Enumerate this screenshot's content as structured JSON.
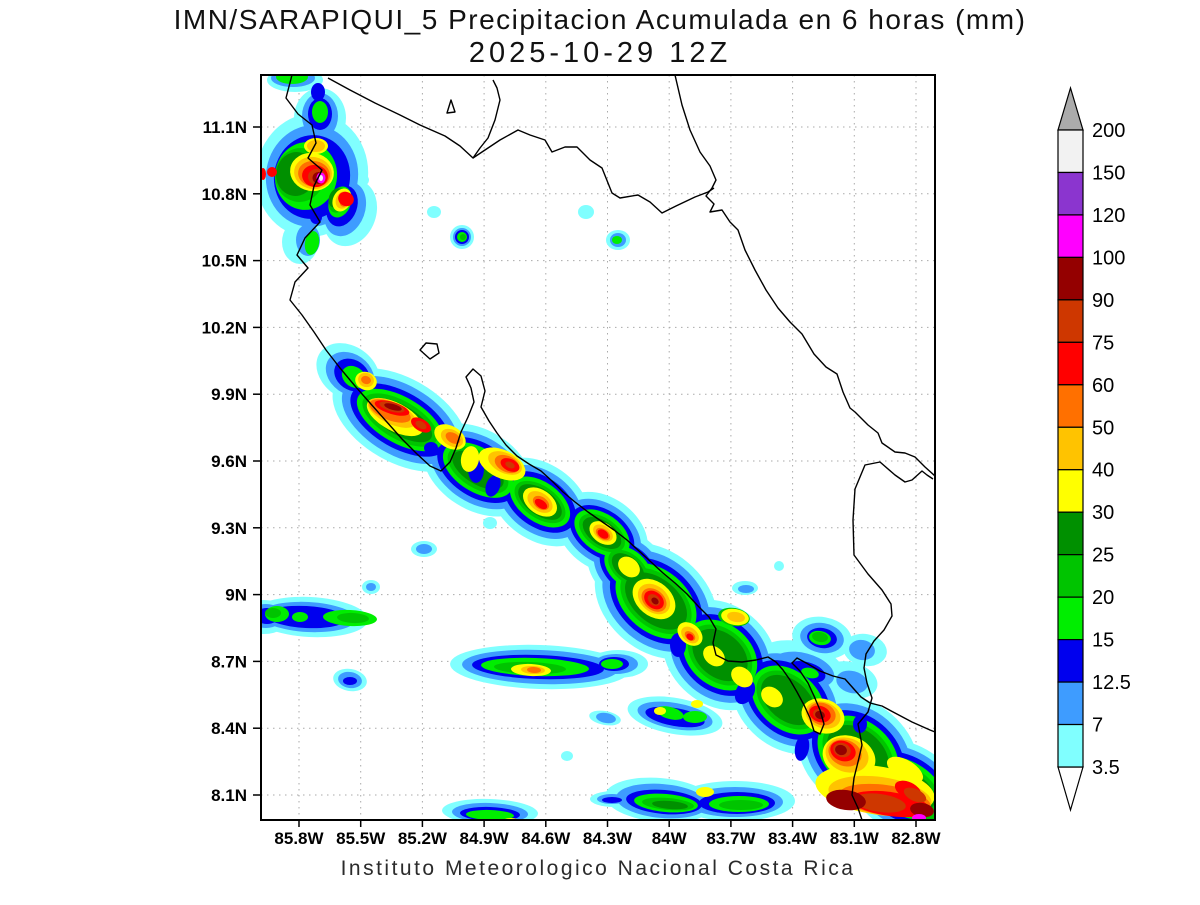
{
  "title": {
    "line1": "IMN/SARAPIQUI_5 Precipitacion Acumulada en 6 horas (mm)",
    "line2": "2025-10-29 12Z"
  },
  "footer": "Instituto Meteorologico Nacional Costa Rica",
  "axes": {
    "x": {
      "type": "longitude",
      "labels": [
        "85.8W",
        "85.5W",
        "85.2W",
        "84.9W",
        "84.6W",
        "84.3W",
        "84W",
        "83.7W",
        "83.4W",
        "83.1W",
        "82.8W"
      ]
    },
    "y": {
      "type": "latitude",
      "labels": [
        "11.1N",
        "10.8N",
        "10.5N",
        "10.2N",
        "9.9N",
        "9.6N",
        "9.3N",
        "9N",
        "8.7N",
        "8.4N",
        "8.1N"
      ]
    }
  },
  "colorbar": {
    "labels": [
      "200",
      "150",
      "120",
      "100",
      "90",
      "75",
      "60",
      "50",
      "40",
      "30",
      "25",
      "20",
      "15",
      "12.5",
      "7",
      "3.5"
    ],
    "segment_levels_top_to_bottom": [
      "150",
      "120",
      "100",
      "90",
      "75",
      "60",
      "50",
      "40",
      "30",
      "25",
      "20",
      "15",
      "12.5",
      "7",
      "3.5"
    ],
    "over_arrow_color": "#ABABAB",
    "under_arrow_color": "#FFFFFF"
  },
  "palette": {
    "3.5": "#80FFFF",
    "7": "#3E9CFF",
    "12.5": "#0000EE",
    "15": "#00EE00",
    "20": "#00C400",
    "25": "#009000",
    "30": "#FFFF00",
    "40": "#FFC300",
    "50": "#FF7000",
    "60": "#FF0000",
    "75": "#CE3700",
    "90": "#940000",
    "100": "#FF00FF",
    "120": "#8B35CF",
    "150": "#F2F2F2",
    "coastline": "#000000",
    "grid": "#AAAAAA",
    "frame": "#000000"
  },
  "chart_data": {
    "type": "heatmap",
    "title": "IMN/SARAPIQUI_5 Precipitacion Acumulada en 6 horas (mm)",
    "valid_time": "2025-10-29 12Z",
    "variable": "Precipitacion Acumulada en 6 horas",
    "units": "mm",
    "region": "Costa Rica",
    "source_caption": "Instituto Meteorologico Nacional Costa Rica",
    "x_axis": {
      "label": "longitude",
      "ticks": [
        "85.8W",
        "85.5W",
        "85.2W",
        "84.9W",
        "84.6W",
        "84.3W",
        "84W",
        "83.7W",
        "83.4W",
        "83.1W",
        "82.8W"
      ],
      "approx_range": [
        "86.0W",
        "82.7W"
      ]
    },
    "y_axis": {
      "label": "latitude",
      "ticks": [
        "11.1N",
        "10.8N",
        "10.5N",
        "10.2N",
        "9.9N",
        "9.6N",
        "9.3N",
        "9N",
        "8.7N",
        "8.4N",
        "8.1N"
      ],
      "approx_range": [
        "8.0N",
        "11.3N"
      ]
    },
    "contour_levels_mm": [
      3.5,
      7,
      12.5,
      15,
      20,
      25,
      30,
      40,
      50,
      60,
      75,
      90,
      100,
      120,
      150,
      200
    ],
    "legend_position": "right",
    "grid": "dotted",
    "max_cells": [
      {
        "lon": "85.69W",
        "lat": "10.87N",
        "max_band_mm": "150-200",
        "note": "intense isolated storm over NW Guanacaste, magenta ring with near-white core"
      },
      {
        "lon": "85.35W",
        "lat": "9.84N",
        "max_band_mm": "90-100"
      },
      {
        "lon": "85.21W",
        "lat": "9.76N",
        "max_band_mm": "75-90"
      },
      {
        "lon": "84.77W",
        "lat": "9.58N",
        "max_band_mm": "75-90"
      },
      {
        "lon": "84.62W",
        "lat": "9.41N",
        "max_band_mm": "60-75"
      },
      {
        "lon": "84.32W",
        "lat": "9.27N",
        "max_band_mm": "60-75"
      },
      {
        "lon": "84.07W",
        "lat": "8.98N",
        "max_band_mm": "90-100"
      },
      {
        "lon": "83.27W",
        "lat": "8.46N",
        "max_band_mm": "90-100"
      },
      {
        "lon": "83.15W",
        "lat": "8.30N",
        "max_band_mm": "90-100"
      },
      {
        "lon": "83.14W",
        "lat": "8.08N",
        "max_band_mm": "90-100"
      },
      {
        "lon": "82.79W",
        "lat": "7.99N",
        "max_band_mm": "100-120",
        "note": "magenta spot clipped at bottom-right corner"
      },
      {
        "lon": "84.66W",
        "lat": "8.66N",
        "max_band_mm": "50-60"
      }
    ],
    "bands": [
      "Broad NW-SE band of heavy rain (30-100 mm) along the Pacific slope from ~85.5W,10.0N to ~82.8W,8.0N",
      "Weak E-W band ~8.9N between 85.8W and 85.3W (max 20-25 mm)",
      "E-W band ~8.68N between 84.9W and 84.2W with 50-60 mm core",
      "Light showers (3.5-25 mm) over SE Caribbean foothills near 83.2W,8.6N",
      "Cells clipped along the 8.0N bottom edge between 84.7W and 82.8W"
    ]
  }
}
